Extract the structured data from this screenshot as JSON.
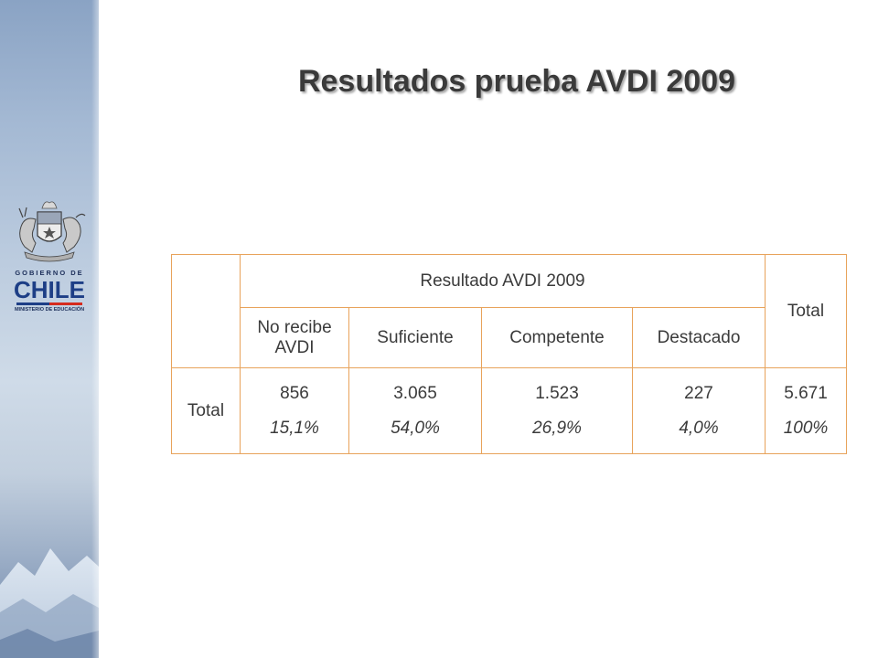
{
  "title": "Resultados prueba AVDI 2009",
  "logo": {
    "line1": "GOBIERNO DE",
    "line2": "CHILE",
    "line3": "MINISTERIO DE EDUCACIÓN"
  },
  "table": {
    "group_header": "Resultado AVDI 2009",
    "total_header": "Total",
    "columns": [
      "No recibe AVDI",
      "Suficiente",
      "Competente",
      "Destacado"
    ],
    "row": {
      "label": "Total",
      "counts": [
        "856",
        "3.065",
        "1.523",
        "227",
        "5.671"
      ],
      "percents": [
        "15,1%",
        "54,0%",
        "26,9%",
        "4,0%",
        "100%"
      ]
    }
  },
  "colors": {
    "border": "#e8a35b",
    "text": "#3b3b3b"
  }
}
